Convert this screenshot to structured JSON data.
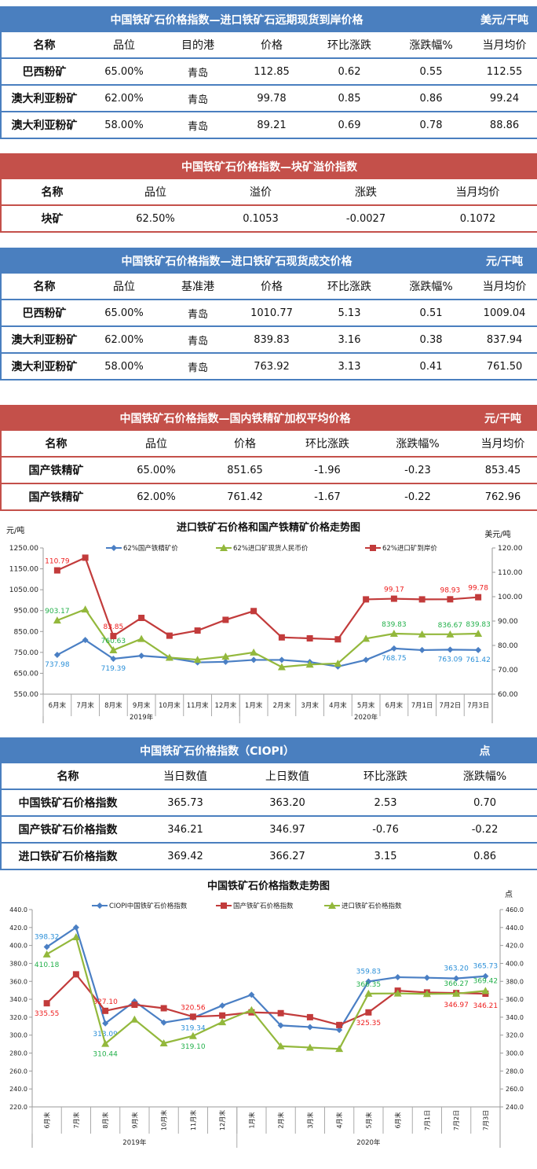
{
  "tables": [
    {
      "title": "中国铁矿石价格指数—进口铁矿石远期现货到岸价格",
      "unit": "美元/干吨",
      "theme": "blue",
      "headers": [
        "名称",
        "品位",
        "目的港",
        "价格",
        "环比涨跌",
        "涨跌幅%",
        "当月均价"
      ],
      "rows": [
        [
          "巴西粉矿",
          "65.00%",
          "青岛",
          "112.85",
          "0.62",
          "0.55",
          "112.55"
        ],
        [
          "澳大利亚粉矿",
          "62.00%",
          "青岛",
          "99.78",
          "0.85",
          "0.86",
          "99.24"
        ],
        [
          "澳大利亚粉矿",
          "58.00%",
          "青岛",
          "89.21",
          "0.69",
          "0.78",
          "88.86"
        ]
      ]
    },
    {
      "title": "中国铁矿石价格指数—块矿溢价指数",
      "unit": "",
      "theme": "red",
      "headers": [
        "名称",
        "品位",
        "溢价",
        "涨跌",
        "当月均价"
      ],
      "rows": [
        [
          "块矿",
          "62.50%",
          "0.1053",
          "-0.0027",
          "0.1072"
        ]
      ]
    },
    {
      "title": "中国铁矿石价格指数—进口铁矿石现货成交价格",
      "unit": "元/干吨",
      "theme": "blue",
      "headers": [
        "名称",
        "品位",
        "基准港",
        "价格",
        "环比涨跌",
        "涨跌幅%",
        "当月均价"
      ],
      "rows": [
        [
          "巴西粉矿",
          "65.00%",
          "青岛",
          "1010.77",
          "5.13",
          "0.51",
          "1009.04"
        ],
        [
          "澳大利亚粉矿",
          "62.00%",
          "青岛",
          "839.83",
          "3.16",
          "0.38",
          "837.94"
        ],
        [
          "澳大利亚粉矿",
          "58.00%",
          "青岛",
          "763.92",
          "3.13",
          "0.41",
          "761.50"
        ]
      ]
    },
    {
      "title": "中国铁矿石价格指数—国内铁精矿加权平均价格",
      "unit": "元/干吨",
      "theme": "red",
      "headers": [
        "名称",
        "品位",
        "价格",
        "环比涨跌",
        "涨跌幅%",
        "当月均价"
      ],
      "rows": [
        [
          "国产铁精矿",
          "65.00%",
          "851.65",
          "-1.96",
          "-0.23",
          "853.45"
        ],
        [
          "国产铁精矿",
          "62.00%",
          "761.42",
          "-1.67",
          "-0.22",
          "762.96"
        ]
      ]
    },
    {
      "title": "中国铁矿石价格指数（CIOPI）",
      "unit": "点",
      "theme": "blue",
      "headers": [
        "名称",
        "当日数值",
        "上日数值",
        "环比涨跌",
        "涨跌幅%"
      ],
      "rows": [
        [
          "中国铁矿石价格指数",
          "365.73",
          "363.20",
          "2.53",
          "0.70"
        ],
        [
          "国产铁矿石价格指数",
          "346.21",
          "346.97",
          "-0.76",
          "-0.22"
        ],
        [
          "进口铁矿石价格指数",
          "369.42",
          "366.27",
          "3.15",
          "0.86"
        ]
      ]
    }
  ],
  "chart_data": [
    {
      "type": "line",
      "title": "进口铁矿石价格和国产铁精矿价格走势图",
      "ylabel": "元/吨",
      "y2label": "美元/吨",
      "categories": [
        "6月末",
        "7月末",
        "8月末",
        "9月末",
        "10月末",
        "11月末",
        "12月末",
        "1月末",
        "2月末",
        "3月末",
        "4月末",
        "5月末",
        "6月末",
        "7月1日",
        "7月2日",
        "7月3日"
      ],
      "groups": [
        {
          "label": "2019年",
          "span": 7
        },
        {
          "label": "2020年",
          "span": 9
        }
      ],
      "ylim": [
        550,
        1250
      ],
      "y2lim": [
        60,
        120
      ],
      "yticks": [
        "550.00",
        "650.00",
        "750.00",
        "850.00",
        "950.00",
        "1050.00",
        "1150.00",
        "1250.00"
      ],
      "y2ticks": [
        "60.00",
        "70.00",
        "80.00",
        "90.00",
        "100.00",
        "110.00",
        "120.00"
      ],
      "legend": "top",
      "series": [
        {
          "name": "62%国产铁精矿价",
          "axis": "left",
          "color": "#4a7fc4",
          "marker": "diamond",
          "labelColor": "#2a8fd8",
          "values": [
            737.98,
            809,
            719.39,
            734,
            724,
            702,
            705,
            714,
            714,
            704,
            682,
            714,
            768.75,
            761,
            763.09,
            761.42
          ],
          "labels": [
            "737.98",
            null,
            "719.39",
            null,
            null,
            null,
            null,
            null,
            null,
            null,
            null,
            null,
            "768.75",
            null,
            "763.09",
            "761.42"
          ]
        },
        {
          "name": "62%进口矿现货人民币价",
          "axis": "left",
          "color": "#93b83c",
          "marker": "triangle",
          "labelColor": "#22b04a",
          "values": [
            903.17,
            956,
            760.63,
            815,
            725,
            715,
            730,
            750,
            680,
            692,
            697,
            816,
            839.83,
            836.67,
            836.67,
            839.83
          ],
          "labels": [
            "903.17",
            null,
            "760.63",
            null,
            null,
            null,
            null,
            null,
            null,
            null,
            null,
            null,
            "839.83",
            null,
            "836.67",
            "839.83"
          ]
        },
        {
          "name": "62%进口矿到岸价",
          "axis": "right",
          "color": "#c23b3b",
          "marker": "square",
          "labelColor": "#ee1c1c",
          "values": [
            110.79,
            116.0,
            83.85,
            91.3,
            84.0,
            86.1,
            90.5,
            94.1,
            83.3,
            82.9,
            82.5,
            98.9,
            99.17,
            98.9,
            98.93,
            99.78
          ],
          "labels": [
            "110.79",
            null,
            "83.85",
            null,
            null,
            null,
            null,
            null,
            null,
            null,
            null,
            null,
            "99.17",
            null,
            "98.93",
            "99.78"
          ]
        }
      ]
    },
    {
      "type": "line",
      "title": "中国铁矿石价格指数走势图",
      "ylabel": "",
      "y2label": "点",
      "categories": [
        "6月末",
        "7月末",
        "8月末",
        "9月末",
        "10月末",
        "11月末",
        "12月末",
        "1月末",
        "2月末",
        "3月末",
        "4月末",
        "5月末",
        "6月末",
        "7月1日",
        "7月2日",
        "7月3日"
      ],
      "groups": [
        {
          "label": "2019年",
          "span": 7
        },
        {
          "label": "2020年",
          "span": 9
        }
      ],
      "ylim": [
        220,
        440
      ],
      "y2lim": [
        240,
        460
      ],
      "yticks": [
        "220.0",
        "240.0",
        "260.0",
        "280.0",
        "300.0",
        "320.0",
        "340.0",
        "360.0",
        "380.0",
        "400.0",
        "420.0",
        "440.0"
      ],
      "y2ticks": [
        "240.0",
        "260.0",
        "280.0",
        "300.0",
        "320.0",
        "340.0",
        "360.0",
        "380.0",
        "400.0",
        "420.0",
        "440.0",
        "460.0"
      ],
      "legend": "top",
      "series": [
        {
          "name": "CIOPI中国铁矿石价格指数",
          "axis": "left",
          "color": "#4a7fc4",
          "marker": "diamond",
          "labelColor": "#2a8fd8",
          "values": [
            398.32,
            420.1,
            313.09,
            337.7,
            314,
            319.34,
            333,
            345,
            310.8,
            309,
            305.8,
            359.83,
            364.6,
            364,
            363.2,
            365.73
          ],
          "labels": [
            "398.32",
            null,
            "313.09",
            null,
            null,
            "319.34",
            null,
            null,
            null,
            null,
            null,
            "359.83",
            null,
            null,
            "363.20",
            "365.73"
          ]
        },
        {
          "name": "国产铁矿石价格指数",
          "axis": "left",
          "color": "#c23b3b",
          "marker": "square",
          "labelColor": "#ee1c1c",
          "values": [
            335.55,
            367.8,
            327.1,
            333.9,
            330,
            320.56,
            321.9,
            325.4,
            324.5,
            320,
            311.3,
            325.35,
            349.6,
            347.6,
            346.97,
            346.21
          ],
          "labels": [
            "335.55",
            null,
            "327.10",
            null,
            null,
            "320.56",
            null,
            null,
            null,
            null,
            null,
            "325.35",
            null,
            null,
            "346.97",
            "346.21"
          ]
        },
        {
          "name": "进口铁矿石价格指数",
          "axis": "right",
          "color": "#93b83c",
          "marker": "triangle",
          "labelColor": "#22b04a",
          "values": [
            410.18,
            429.3,
            310.44,
            337.5,
            311,
            319.1,
            334.6,
            348,
            307.7,
            306.2,
            304.7,
            366.35,
            366.5,
            366,
            366.27,
            369.42
          ],
          "labels": [
            "410.18",
            null,
            "310.44",
            null,
            null,
            "319.10",
            null,
            null,
            null,
            null,
            null,
            "366.35",
            null,
            null,
            "366.27",
            "369.42"
          ]
        }
      ]
    }
  ]
}
